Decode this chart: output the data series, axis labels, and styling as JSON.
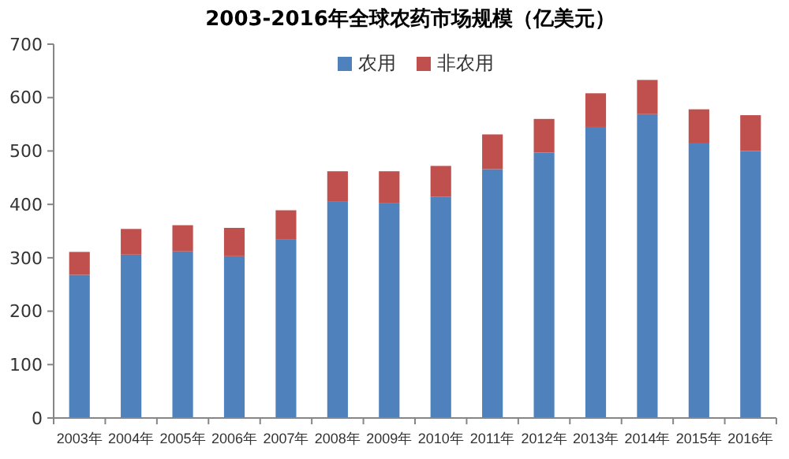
{
  "chart_data": {
    "type": "bar",
    "title": "2003-2016年全球农药市场规模（亿美元）",
    "stacked": true,
    "legend": "top",
    "grid": false,
    "categories": [
      "2003年",
      "2004年",
      "2005年",
      "2006年",
      "2007年",
      "2008年",
      "2009年",
      "2010年",
      "2011年",
      "2012年",
      "2013年",
      "2014年",
      "2015年",
      "2016年"
    ],
    "series": [
      {
        "name": "农用",
        "color": "#4f81bd",
        "values": [
          268,
          306,
          312,
          303,
          334,
          406,
          403,
          414,
          466,
          497,
          545,
          569,
          514,
          500
        ]
      },
      {
        "name": "非农用",
        "color": "#c0504d",
        "values": [
          43,
          48,
          49,
          53,
          55,
          56,
          59,
          58,
          65,
          63,
          63,
          64,
          64,
          67
        ]
      }
    ],
    "ylim": [
      0,
      700
    ],
    "yticks": [
      0,
      100,
      200,
      300,
      400,
      500,
      600,
      700
    ]
  }
}
